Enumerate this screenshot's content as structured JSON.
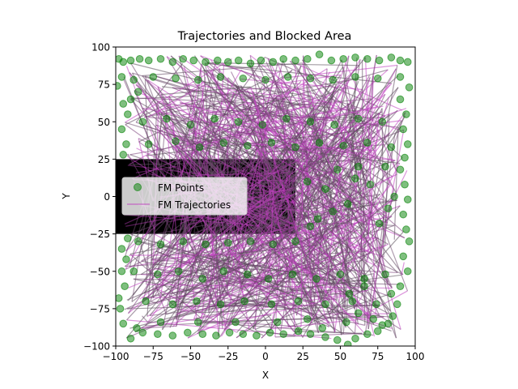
{
  "chart_data": {
    "type": "scatter",
    "title": "Trajectories and Blocked Area",
    "xlabel": "X",
    "ylabel": "Y",
    "xlim": [
      -100,
      100
    ],
    "ylim": [
      -100,
      100
    ],
    "xticks": [
      -100,
      -75,
      -50,
      -25,
      0,
      25,
      50,
      75,
      100
    ],
    "yticks": [
      -100,
      -75,
      -50,
      -25,
      0,
      25,
      50,
      75,
      100
    ],
    "xtick_labels": [
      "−100",
      "−75",
      "−50",
      "−25",
      "0",
      "25",
      "50",
      "75",
      "100"
    ],
    "ytick_labels": [
      "−100",
      "−75",
      "−50",
      "−25",
      "0",
      "25",
      "50",
      "75",
      "100"
    ],
    "grid": false,
    "legend": {
      "placement": "center-left",
      "entries": [
        "FM Points",
        "FM Trajectories"
      ]
    },
    "blocked_area": {
      "x": [
        -100,
        20
      ],
      "y": [
        -25,
        25
      ],
      "color": "#000000"
    },
    "series": [
      {
        "name": "FM Points",
        "kind": "scatter",
        "color": "#008000",
        "alpha": 0.5
      },
      {
        "name": "FM Trajectories",
        "kind": "line",
        "color": "#bf40bf",
        "alpha": 0.5
      }
    ],
    "points": [
      [
        -98,
        92
      ],
      [
        -95,
        90
      ],
      [
        -90,
        91
      ],
      [
        -84,
        92
      ],
      [
        -78,
        91
      ],
      [
        -70,
        92
      ],
      [
        -62,
        90
      ],
      [
        -55,
        92
      ],
      [
        -48,
        91
      ],
      [
        -40,
        90
      ],
      [
        -32,
        91
      ],
      [
        -25,
        90
      ],
      [
        -18,
        91
      ],
      [
        -10,
        89
      ],
      [
        -3,
        91
      ],
      [
        5,
        90
      ],
      [
        12,
        92
      ],
      [
        20,
        91
      ],
      [
        28,
        92
      ],
      [
        36,
        95
      ],
      [
        44,
        91
      ],
      [
        52,
        92
      ],
      [
        60,
        93
      ],
      [
        68,
        92
      ],
      [
        76,
        91
      ],
      [
        84,
        93
      ],
      [
        90,
        91
      ],
      [
        95,
        90
      ],
      [
        -96,
        80
      ],
      [
        -88,
        78
      ],
      [
        -75,
        80
      ],
      [
        -60,
        79
      ],
      [
        -45,
        78
      ],
      [
        -30,
        80
      ],
      [
        -15,
        79
      ],
      [
        0,
        78
      ],
      [
        15,
        80
      ],
      [
        30,
        79
      ],
      [
        45,
        78
      ],
      [
        60,
        80
      ],
      [
        75,
        79
      ],
      [
        90,
        80
      ],
      [
        96,
        73
      ],
      [
        -99,
        74
      ],
      [
        -95,
        62
      ],
      [
        -92,
        55
      ],
      [
        -96,
        45
      ],
      [
        -93,
        35
      ],
      [
        -95,
        28
      ],
      [
        -90,
        65
      ],
      [
        -85,
        70
      ],
      [
        90,
        65
      ],
      [
        94,
        55
      ],
      [
        92,
        45
      ],
      [
        95,
        35
      ],
      [
        93,
        26
      ],
      [
        90,
        18
      ],
      [
        93,
        8
      ],
      [
        95,
        -2
      ],
      [
        92,
        -12
      ],
      [
        94,
        -22
      ],
      [
        96,
        -30
      ],
      [
        92,
        -40
      ],
      [
        95,
        -50
      ],
      [
        90,
        -60
      ],
      [
        88,
        -72
      ],
      [
        85,
        -80
      ],
      [
        82,
        -85
      ],
      [
        75,
        -90
      ],
      [
        68,
        -92
      ],
      [
        60,
        -95
      ],
      [
        55,
        -99
      ],
      [
        48,
        -96
      ],
      [
        40,
        -94
      ],
      [
        30,
        -92
      ],
      [
        22,
        -90
      ],
      [
        12,
        -92
      ],
      [
        3,
        -91
      ],
      [
        -6,
        -93
      ],
      [
        -15,
        -92
      ],
      [
        -24,
        -91
      ],
      [
        -33,
        -93
      ],
      [
        -42,
        -92
      ],
      [
        -52,
        -91
      ],
      [
        -62,
        -93
      ],
      [
        -72,
        -92
      ],
      [
        -82,
        -91
      ],
      [
        -90,
        -95
      ],
      [
        -95,
        -85
      ],
      [
        -97,
        -75
      ],
      [
        -98,
        -68
      ],
      [
        -94,
        -60
      ],
      [
        -96,
        -50
      ],
      [
        -93,
        -42
      ],
      [
        -96,
        -35
      ],
      [
        -92,
        -28
      ],
      [
        -85,
        -30
      ],
      [
        -70,
        -32
      ],
      [
        -55,
        -30
      ],
      [
        -40,
        -32
      ],
      [
        -25,
        -31
      ],
      [
        -10,
        -30
      ],
      [
        5,
        -32
      ],
      [
        20,
        -30
      ],
      [
        -88,
        -50
      ],
      [
        -72,
        -52
      ],
      [
        -58,
        -50
      ],
      [
        -42,
        -55
      ],
      [
        -28,
        -50
      ],
      [
        -12,
        -52
      ],
      [
        2,
        -55
      ],
      [
        18,
        -52
      ],
      [
        34,
        -55
      ],
      [
        50,
        -52
      ],
      [
        66,
        -55
      ],
      [
        80,
        -52
      ],
      [
        -80,
        -70
      ],
      [
        -62,
        -72
      ],
      [
        -46,
        -70
      ],
      [
        -30,
        -72
      ],
      [
        -14,
        -70
      ],
      [
        4,
        -72
      ],
      [
        22,
        -70
      ],
      [
        40,
        -72
      ],
      [
        58,
        -70
      ],
      [
        74,
        -72
      ],
      [
        -82,
        50
      ],
      [
        -66,
        52
      ],
      [
        -50,
        48
      ],
      [
        -34,
        52
      ],
      [
        -18,
        50
      ],
      [
        -2,
        48
      ],
      [
        14,
        52
      ],
      [
        30,
        50
      ],
      [
        46,
        48
      ],
      [
        62,
        52
      ],
      [
        78,
        50
      ],
      [
        -78,
        35
      ],
      [
        -60,
        37
      ],
      [
        -44,
        33
      ],
      [
        -28,
        36
      ],
      [
        -12,
        34
      ],
      [
        4,
        36
      ],
      [
        20,
        33
      ],
      [
        36,
        36
      ],
      [
        52,
        34
      ],
      [
        68,
        36
      ],
      [
        84,
        33
      ],
      [
        28,
        10
      ],
      [
        40,
        5
      ],
      [
        55,
        -5
      ],
      [
        70,
        8
      ],
      [
        82,
        -8
      ],
      [
        35,
        -15
      ],
      [
        48,
        18
      ],
      [
        62,
        20
      ],
      [
        76,
        -18
      ],
      [
        30,
        -20
      ],
      [
        45,
        -10
      ],
      [
        60,
        12
      ],
      [
        80,
        20
      ],
      [
        86,
        0
      ],
      [
        38,
        -88
      ],
      [
        54,
        -84
      ],
      [
        62,
        -78
      ],
      [
        72,
        -82
      ],
      [
        78,
        -86
      ],
      [
        28,
        -82
      ],
      [
        8,
        -84
      ],
      [
        -20,
        -84
      ],
      [
        -45,
        -84
      ],
      [
        -70,
        -84
      ],
      [
        -86,
        -88
      ],
      [
        66,
        -60
      ],
      [
        56,
        -65
      ],
      [
        84,
        -65
      ]
    ]
  }
}
